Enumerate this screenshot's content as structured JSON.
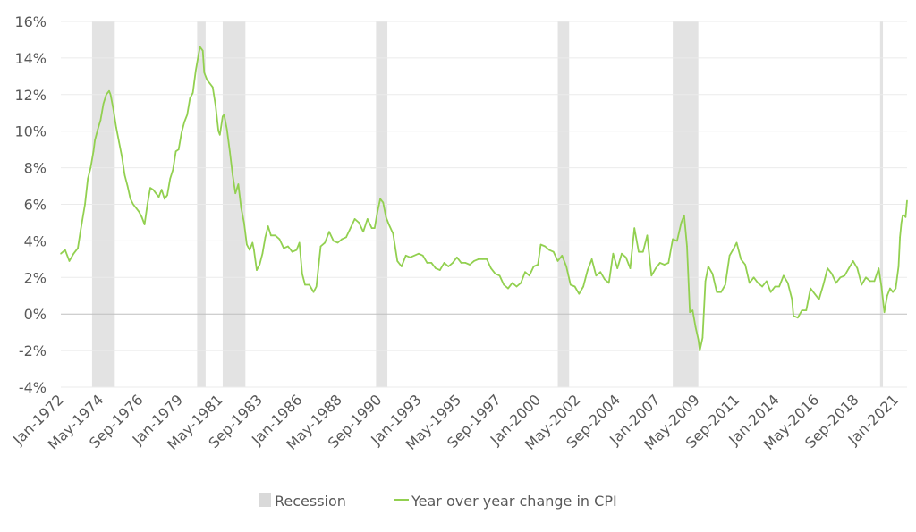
{
  "chart_data": {
    "type": "line",
    "x_start": "Jan-1972",
    "x_end": "Sep-2021",
    "ylim": [
      -4,
      16
    ],
    "y_ticks": [
      "-4%",
      "-2%",
      "0%",
      "2%",
      "4%",
      "6%",
      "8%",
      "10%",
      "12%",
      "14%",
      "16%"
    ],
    "y_tick_values": [
      -4,
      -2,
      0,
      2,
      4,
      6,
      8,
      10,
      12,
      14,
      16
    ],
    "x_ticks": [
      "Jan-1972",
      "May-1974",
      "Sep-1976",
      "Jan-1979",
      "May-1981",
      "Sep-1983",
      "Jan-1986",
      "May-1988",
      "Sep-1990",
      "Jan-1993",
      "May-1995",
      "Sep-1997",
      "Jan-2000",
      "May-2002",
      "Sep-2004",
      "Jan-2007",
      "May-2009",
      "Sep-2011",
      "Jan-2014",
      "May-2016",
      "Sep-2018",
      "Jan-2021"
    ],
    "grid": "horizontal",
    "legend_position": "bottom",
    "series": [
      {
        "name": "Year over year change in CPI",
        "color": "#92d050",
        "points": [
          [
            "1972-01",
            3.3
          ],
          [
            "1972-04",
            3.5
          ],
          [
            "1972-07",
            2.9
          ],
          [
            "1972-10",
            3.3
          ],
          [
            "1973-01",
            3.6
          ],
          [
            "1973-03",
            4.6
          ],
          [
            "1973-06",
            6.0
          ],
          [
            "1973-08",
            7.4
          ],
          [
            "1973-10",
            8.0
          ],
          [
            "1973-12",
            8.9
          ],
          [
            "1974-01",
            9.5
          ],
          [
            "1974-03",
            10.1
          ],
          [
            "1974-05",
            10.6
          ],
          [
            "1974-07",
            11.5
          ],
          [
            "1974-09",
            12.0
          ],
          [
            "1974-11",
            12.2
          ],
          [
            "1974-12",
            12.0
          ],
          [
            "1975-02",
            11.2
          ],
          [
            "1975-04",
            10.2
          ],
          [
            "1975-06",
            9.4
          ],
          [
            "1975-08",
            8.6
          ],
          [
            "1975-10",
            7.6
          ],
          [
            "1975-12",
            7.0
          ],
          [
            "1976-02",
            6.3
          ],
          [
            "1976-04",
            6.0
          ],
          [
            "1976-06",
            5.8
          ],
          [
            "1976-08",
            5.6
          ],
          [
            "1976-10",
            5.3
          ],
          [
            "1976-12",
            4.9
          ],
          [
            "1977-02",
            6.0
          ],
          [
            "1977-04",
            6.9
          ],
          [
            "1977-06",
            6.8
          ],
          [
            "1977-08",
            6.6
          ],
          [
            "1977-10",
            6.4
          ],
          [
            "1977-12",
            6.8
          ],
          [
            "1978-02",
            6.3
          ],
          [
            "1978-04",
            6.5
          ],
          [
            "1978-06",
            7.4
          ],
          [
            "1978-08",
            7.9
          ],
          [
            "1978-10",
            8.9
          ],
          [
            "1978-12",
            9.0
          ],
          [
            "1979-02",
            9.9
          ],
          [
            "1979-04",
            10.5
          ],
          [
            "1979-06",
            10.9
          ],
          [
            "1979-08",
            11.8
          ],
          [
            "1979-10",
            12.1
          ],
          [
            "1979-12",
            13.3
          ],
          [
            "1980-02",
            14.2
          ],
          [
            "1980-03",
            14.6
          ],
          [
            "1980-05",
            14.4
          ],
          [
            "1980-06",
            13.2
          ],
          [
            "1980-08",
            12.8
          ],
          [
            "1980-10",
            12.6
          ],
          [
            "1980-12",
            12.4
          ],
          [
            "1981-02",
            11.4
          ],
          [
            "1981-04",
            10.0
          ],
          [
            "1981-05",
            9.8
          ],
          [
            "1981-07",
            10.8
          ],
          [
            "1981-08",
            10.9
          ],
          [
            "1981-10",
            10.1
          ],
          [
            "1981-12",
            8.9
          ],
          [
            "1982-02",
            7.6
          ],
          [
            "1982-04",
            6.6
          ],
          [
            "1982-06",
            7.1
          ],
          [
            "1982-08",
            5.8
          ],
          [
            "1982-10",
            5.0
          ],
          [
            "1982-12",
            3.8
          ],
          [
            "1983-02",
            3.5
          ],
          [
            "1983-04",
            3.9
          ],
          [
            "1983-05",
            3.5
          ],
          [
            "1983-07",
            2.4
          ],
          [
            "1983-09",
            2.7
          ],
          [
            "1983-11",
            3.3
          ],
          [
            "1984-01",
            4.2
          ],
          [
            "1984-03",
            4.8
          ],
          [
            "1984-05",
            4.3
          ],
          [
            "1984-08",
            4.3
          ],
          [
            "1984-11",
            4.1
          ],
          [
            "1985-02",
            3.6
          ],
          [
            "1985-05",
            3.7
          ],
          [
            "1985-08",
            3.4
          ],
          [
            "1985-11",
            3.5
          ],
          [
            "1986-01",
            3.9
          ],
          [
            "1986-03",
            2.2
          ],
          [
            "1986-05",
            1.6
          ],
          [
            "1986-08",
            1.6
          ],
          [
            "1986-11",
            1.2
          ],
          [
            "1987-01",
            1.5
          ],
          [
            "1987-04",
            3.7
          ],
          [
            "1987-07",
            3.9
          ],
          [
            "1987-10",
            4.5
          ],
          [
            "1988-01",
            4.0
          ],
          [
            "1988-04",
            3.9
          ],
          [
            "1988-07",
            4.1
          ],
          [
            "1988-10",
            4.2
          ],
          [
            "1989-01",
            4.7
          ],
          [
            "1989-04",
            5.2
          ],
          [
            "1989-07",
            5.0
          ],
          [
            "1989-10",
            4.5
          ],
          [
            "1990-01",
            5.2
          ],
          [
            "1990-04",
            4.7
          ],
          [
            "1990-06",
            4.7
          ],
          [
            "1990-08",
            5.6
          ],
          [
            "1990-10",
            6.3
          ],
          [
            "1990-12",
            6.1
          ],
          [
            "1991-02",
            5.3
          ],
          [
            "1991-04",
            4.9
          ],
          [
            "1991-07",
            4.4
          ],
          [
            "1991-10",
            2.9
          ],
          [
            "1992-01",
            2.6
          ],
          [
            "1992-04",
            3.2
          ],
          [
            "1992-07",
            3.1
          ],
          [
            "1992-10",
            3.2
          ],
          [
            "1993-01",
            3.3
          ],
          [
            "1993-04",
            3.2
          ],
          [
            "1993-07",
            2.8
          ],
          [
            "1993-10",
            2.8
          ],
          [
            "1994-01",
            2.5
          ],
          [
            "1994-04",
            2.4
          ],
          [
            "1994-07",
            2.8
          ],
          [
            "1994-10",
            2.6
          ],
          [
            "1995-01",
            2.8
          ],
          [
            "1995-04",
            3.1
          ],
          [
            "1995-07",
            2.8
          ],
          [
            "1995-10",
            2.8
          ],
          [
            "1996-01",
            2.7
          ],
          [
            "1996-04",
            2.9
          ],
          [
            "1996-07",
            3.0
          ],
          [
            "1996-10",
            3.0
          ],
          [
            "1997-01",
            3.0
          ],
          [
            "1997-04",
            2.5
          ],
          [
            "1997-07",
            2.2
          ],
          [
            "1997-10",
            2.1
          ],
          [
            "1998-01",
            1.6
          ],
          [
            "1998-04",
            1.4
          ],
          [
            "1998-07",
            1.7
          ],
          [
            "1998-10",
            1.5
          ],
          [
            "1999-01",
            1.7
          ],
          [
            "1999-04",
            2.3
          ],
          [
            "1999-07",
            2.1
          ],
          [
            "1999-10",
            2.6
          ],
          [
            "2000-01",
            2.7
          ],
          [
            "2000-03",
            3.8
          ],
          [
            "2000-06",
            3.7
          ],
          [
            "2000-09",
            3.5
          ],
          [
            "2000-12",
            3.4
          ],
          [
            "2001-03",
            2.9
          ],
          [
            "2001-06",
            3.2
          ],
          [
            "2001-09",
            2.6
          ],
          [
            "2001-12",
            1.6
          ],
          [
            "2002-03",
            1.5
          ],
          [
            "2002-06",
            1.1
          ],
          [
            "2002-09",
            1.5
          ],
          [
            "2002-12",
            2.4
          ],
          [
            "2003-03",
            3.0
          ],
          [
            "2003-06",
            2.1
          ],
          [
            "2003-09",
            2.3
          ],
          [
            "2003-12",
            1.9
          ],
          [
            "2004-03",
            1.7
          ],
          [
            "2004-06",
            3.3
          ],
          [
            "2004-09",
            2.5
          ],
          [
            "2004-12",
            3.3
          ],
          [
            "2005-03",
            3.1
          ],
          [
            "2005-06",
            2.5
          ],
          [
            "2005-09",
            4.7
          ],
          [
            "2005-12",
            3.4
          ],
          [
            "2006-03",
            3.4
          ],
          [
            "2006-06",
            4.3
          ],
          [
            "2006-09",
            2.1
          ],
          [
            "2006-12",
            2.5
          ],
          [
            "2007-03",
            2.8
          ],
          [
            "2007-06",
            2.7
          ],
          [
            "2007-09",
            2.8
          ],
          [
            "2007-12",
            4.1
          ],
          [
            "2008-03",
            4.0
          ],
          [
            "2008-06",
            5.0
          ],
          [
            "2008-08",
            5.4
          ],
          [
            "2008-10",
            3.7
          ],
          [
            "2008-12",
            0.1
          ],
          [
            "2009-02",
            0.2
          ],
          [
            "2009-04",
            -0.7
          ],
          [
            "2009-06",
            -1.4
          ],
          [
            "2009-07",
            -2.0
          ],
          [
            "2009-09",
            -1.3
          ],
          [
            "2009-11",
            1.8
          ],
          [
            "2010-01",
            2.6
          ],
          [
            "2010-04",
            2.2
          ],
          [
            "2010-07",
            1.2
          ],
          [
            "2010-10",
            1.2
          ],
          [
            "2011-01",
            1.6
          ],
          [
            "2011-04",
            3.2
          ],
          [
            "2011-07",
            3.6
          ],
          [
            "2011-09",
            3.9
          ],
          [
            "2011-12",
            3.0
          ],
          [
            "2012-03",
            2.7
          ],
          [
            "2012-06",
            1.7
          ],
          [
            "2012-09",
            2.0
          ],
          [
            "2012-12",
            1.7
          ],
          [
            "2013-03",
            1.5
          ],
          [
            "2013-06",
            1.8
          ],
          [
            "2013-09",
            1.2
          ],
          [
            "2013-12",
            1.5
          ],
          [
            "2014-03",
            1.5
          ],
          [
            "2014-06",
            2.1
          ],
          [
            "2014-09",
            1.7
          ],
          [
            "2014-12",
            0.8
          ],
          [
            "2015-01",
            -0.1
          ],
          [
            "2015-04",
            -0.2
          ],
          [
            "2015-07",
            0.2
          ],
          [
            "2015-10",
            0.2
          ],
          [
            "2016-01",
            1.4
          ],
          [
            "2016-04",
            1.1
          ],
          [
            "2016-07",
            0.8
          ],
          [
            "2016-10",
            1.6
          ],
          [
            "2017-01",
            2.5
          ],
          [
            "2017-04",
            2.2
          ],
          [
            "2017-07",
            1.7
          ],
          [
            "2017-10",
            2.0
          ],
          [
            "2018-01",
            2.1
          ],
          [
            "2018-04",
            2.5
          ],
          [
            "2018-07",
            2.9
          ],
          [
            "2018-10",
            2.5
          ],
          [
            "2019-01",
            1.6
          ],
          [
            "2019-04",
            2.0
          ],
          [
            "2019-07",
            1.8
          ],
          [
            "2019-10",
            1.8
          ],
          [
            "2020-01",
            2.5
          ],
          [
            "2020-03",
            1.5
          ],
          [
            "2020-05",
            0.1
          ],
          [
            "2020-07",
            1.0
          ],
          [
            "2020-09",
            1.4
          ],
          [
            "2020-11",
            1.2
          ],
          [
            "2021-01",
            1.4
          ],
          [
            "2021-03",
            2.6
          ],
          [
            "2021-04",
            4.2
          ],
          [
            "2021-05",
            5.0
          ],
          [
            "2021-06",
            5.4
          ],
          [
            "2021-07",
            5.4
          ],
          [
            "2021-08",
            5.3
          ],
          [
            "2021-09",
            6.2
          ]
        ]
      }
    ],
    "recessions": [
      [
        "1973-11",
        "1975-03"
      ],
      [
        "1980-01",
        "1980-07"
      ],
      [
        "1981-07",
        "1982-11"
      ],
      [
        "1990-07",
        "1991-03"
      ],
      [
        "2001-03",
        "2001-11"
      ],
      [
        "2007-12",
        "2009-06"
      ],
      [
        "2020-02",
        "2020-04"
      ]
    ],
    "legend": {
      "recession_label": "Recession",
      "cpi_label": "Year over year change in CPI"
    }
  }
}
